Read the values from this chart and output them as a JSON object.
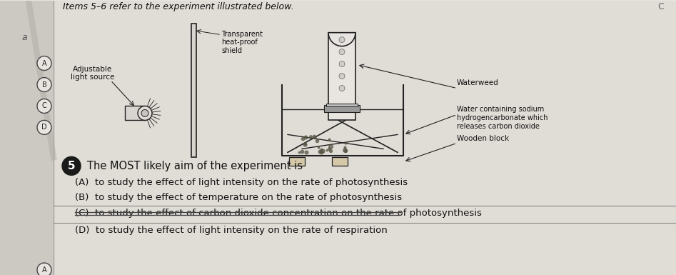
{
  "title": "Items 5–6 refer to the experiment illustrated below.",
  "bg_color": "#e8e5e0",
  "main_bg": "#dedad4",
  "white": "#f0eeeb",
  "label_shield": "Transparent\nheat-proof\nshield",
  "label_light": "Adjustable\nlight source",
  "label_waterweed": "Waterweed",
  "label_water": "Water containing sodium\nhydrogencarbonate which\nreleases carbon dioxide",
  "label_block": "Wooden block",
  "q5_num": "5",
  "question": "The MOST likely aim of the experiment is",
  "options": [
    "(A)  to study the effect of light intensity on the rate of photosynthesis",
    "(B)  to study the effect of temperature on the rate of photosynthesis",
    "(C)  to study the effect of carbon dioxide concentration on the rate of photosynthesis",
    "(D)  to study the effect of light intensity on the rate of respiration"
  ],
  "strikethrough_option": 2,
  "corner_c": "C",
  "dark_line_color": "#222222",
  "mid_line_color": "#888888",
  "text_color": "#111111"
}
